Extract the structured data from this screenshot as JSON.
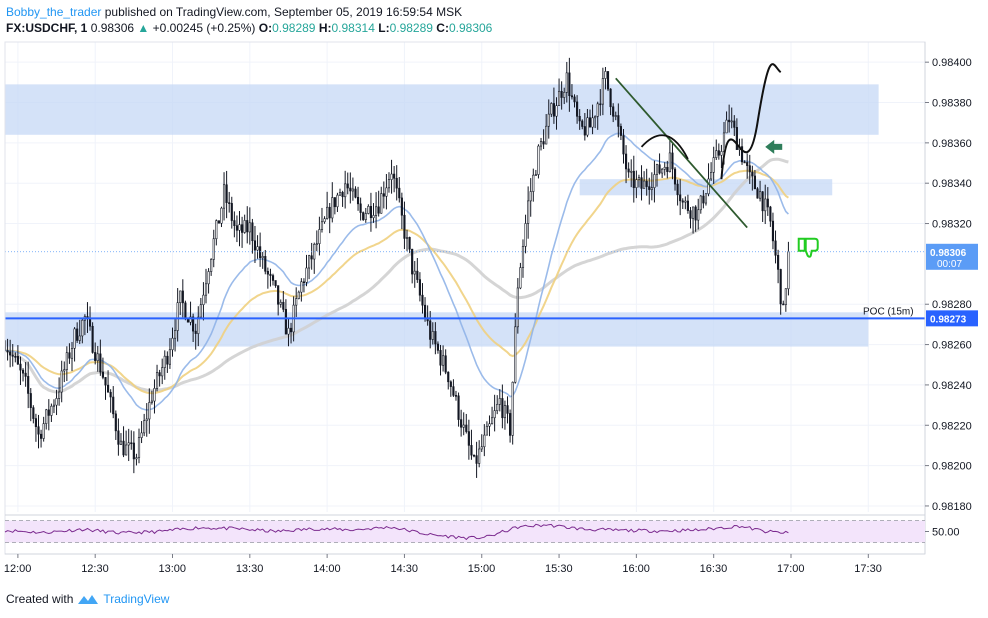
{
  "header": {
    "author": "Bobby_the_trader",
    "published": "published on TradingView.com, September 05, 2019 16:59:54 MSK",
    "symbol": "FX:USDCHF, 1",
    "last": "0.98306",
    "change": "+0.00245 (+0.25%)",
    "o_label": "O:",
    "o": "0.98289",
    "h_label": "H:",
    "h": "0.98314",
    "l_label": "L:",
    "l": "0.98289",
    "c_label": "C:",
    "c": "0.98306"
  },
  "footer": {
    "created_with": "Created with",
    "brand": "TradingView",
    "logo_icon": "tradingview-logo-icon"
  },
  "colors": {
    "up": "#26a69a",
    "candle": "#131722",
    "zone": "#c5d8f5",
    "poc": "#2962ff",
    "ma_blue": "#90b4e8",
    "ma_orange": "#f0d080",
    "ma_gray": "#d0d0d0",
    "trend": "#2e5a2e",
    "rsi_fill": "#f3e4fb",
    "rsi_line": "#7b2a8f",
    "arrow": "#2e7d5a",
    "thumb": "#22cc22"
  },
  "chart_data": [
    {
      "type": "candlestick",
      "x_ticks": [
        "12:00",
        "12:30",
        "13:00",
        "13:30",
        "14:00",
        "14:30",
        "15:00",
        "15:30",
        "16:00",
        "16:30",
        "17:00",
        "17:30"
      ],
      "x_range": [
        "11:55",
        "17:52"
      ],
      "y_ticks": [
        "0.98400",
        "0.98380",
        "0.98360",
        "0.98340",
        "0.98320",
        "0.98280",
        "0.98260",
        "0.98240",
        "0.98220",
        "0.98200",
        "0.98180"
      ],
      "ylim": [
        0.98177,
        0.9841
      ],
      "last_price_label": "0.98306",
      "countdown": "00:07",
      "poc": {
        "label": "POC (15m)",
        "value": "0.98273"
      },
      "zones": [
        {
          "from": "11:55",
          "to": "17:34",
          "low": 0.98364,
          "high": 0.98389
        },
        {
          "from": "15:38",
          "to": "17:16",
          "low": 0.98334,
          "high": 0.98342
        },
        {
          "from": "11:55",
          "to": "17:30",
          "low": 0.98259,
          "high": 0.98276
        }
      ],
      "close_path": [
        [
          "11:55",
          0.98262
        ],
        [
          "12:03",
          0.9824
        ],
        [
          "12:08",
          0.98215
        ],
        [
          "12:15",
          0.98235
        ],
        [
          "12:22",
          0.98264
        ],
        [
          "12:26",
          0.98273
        ],
        [
          "12:33",
          0.98245
        ],
        [
          "12:40",
          0.9821
        ],
        [
          "12:46",
          0.98205
        ],
        [
          "12:52",
          0.98235
        ],
        [
          "12:58",
          0.98255
        ],
        [
          "13:03",
          0.98282
        ],
        [
          "13:09",
          0.98268
        ],
        [
          "13:14",
          0.983
        ],
        [
          "13:18",
          0.98322
        ],
        [
          "13:20",
          0.98335
        ],
        [
          "13:25",
          0.98315
        ],
        [
          "13:30",
          0.98318
        ],
        [
          "13:35",
          0.983
        ],
        [
          "13:40",
          0.98285
        ],
        [
          "13:45",
          0.98265
        ],
        [
          "13:50",
          0.9829
        ],
        [
          "13:56",
          0.9831
        ],
        [
          "14:01",
          0.98327
        ],
        [
          "14:07",
          0.9834
        ],
        [
          "14:13",
          0.98325
        ],
        [
          "14:20",
          0.9833
        ],
        [
          "14:25",
          0.98347
        ],
        [
          "14:28",
          0.98328
        ],
        [
          "14:33",
          0.98298
        ],
        [
          "14:40",
          0.98265
        ],
        [
          "14:47",
          0.98245
        ],
        [
          "14:52",
          0.98222
        ],
        [
          "14:57",
          0.982
        ],
        [
          "15:02",
          0.98215
        ],
        [
          "15:07",
          0.98232
        ],
        [
          "15:11",
          0.98218
        ],
        [
          "15:14",
          0.9829
        ],
        [
          "15:18",
          0.9833
        ],
        [
          "15:22",
          0.98355
        ],
        [
          "15:27",
          0.98375
        ],
        [
          "15:33",
          0.98392
        ],
        [
          "15:38",
          0.98366
        ],
        [
          "15:42",
          0.98368
        ],
        [
          "15:48",
          0.98392
        ],
        [
          "15:52",
          0.98372
        ],
        [
          "15:57",
          0.98342
        ],
        [
          "16:02",
          0.98338
        ],
        [
          "16:08",
          0.98345
        ],
        [
          "16:13",
          0.98352
        ],
        [
          "16:18",
          0.9833
        ],
        [
          "16:24",
          0.98325
        ],
        [
          "16:28",
          0.98342
        ],
        [
          "16:32",
          0.98355
        ],
        [
          "16:36",
          0.98372
        ],
        [
          "16:40",
          0.98358
        ],
        [
          "16:44",
          0.98342
        ],
        [
          "16:48",
          0.98335
        ],
        [
          "16:52",
          0.9832
        ],
        [
          "16:55",
          0.98295
        ],
        [
          "16:57",
          0.98275
        ],
        [
          "16:59",
          0.98306
        ]
      ],
      "indicators": [
        "EMA (blue)",
        "EMA (orange)",
        "SMA (gray)"
      ]
    },
    {
      "type": "line",
      "name": "RSI",
      "y_ticks": [
        "50.00"
      ],
      "ylim": [
        20,
        80
      ],
      "levels": [
        70,
        30
      ],
      "values": [
        [
          "11:55",
          52
        ],
        [
          "12:10",
          48
        ],
        [
          "12:25",
          54
        ],
        [
          "12:40",
          47
        ],
        [
          "12:55",
          50
        ],
        [
          "13:10",
          57
        ],
        [
          "13:25",
          55
        ],
        [
          "13:40",
          50
        ],
        [
          "13:55",
          55
        ],
        [
          "14:10",
          53
        ],
        [
          "14:25",
          58
        ],
        [
          "14:40",
          44
        ],
        [
          "14:55",
          38
        ],
        [
          "15:02",
          40
        ],
        [
          "15:14",
          58
        ],
        [
          "15:25",
          62
        ],
        [
          "15:40",
          54
        ],
        [
          "15:55",
          52
        ],
        [
          "16:10",
          51
        ],
        [
          "16:25",
          53
        ],
        [
          "16:40",
          60
        ],
        [
          "16:50",
          50
        ],
        [
          "16:59",
          47
        ]
      ]
    }
  ]
}
